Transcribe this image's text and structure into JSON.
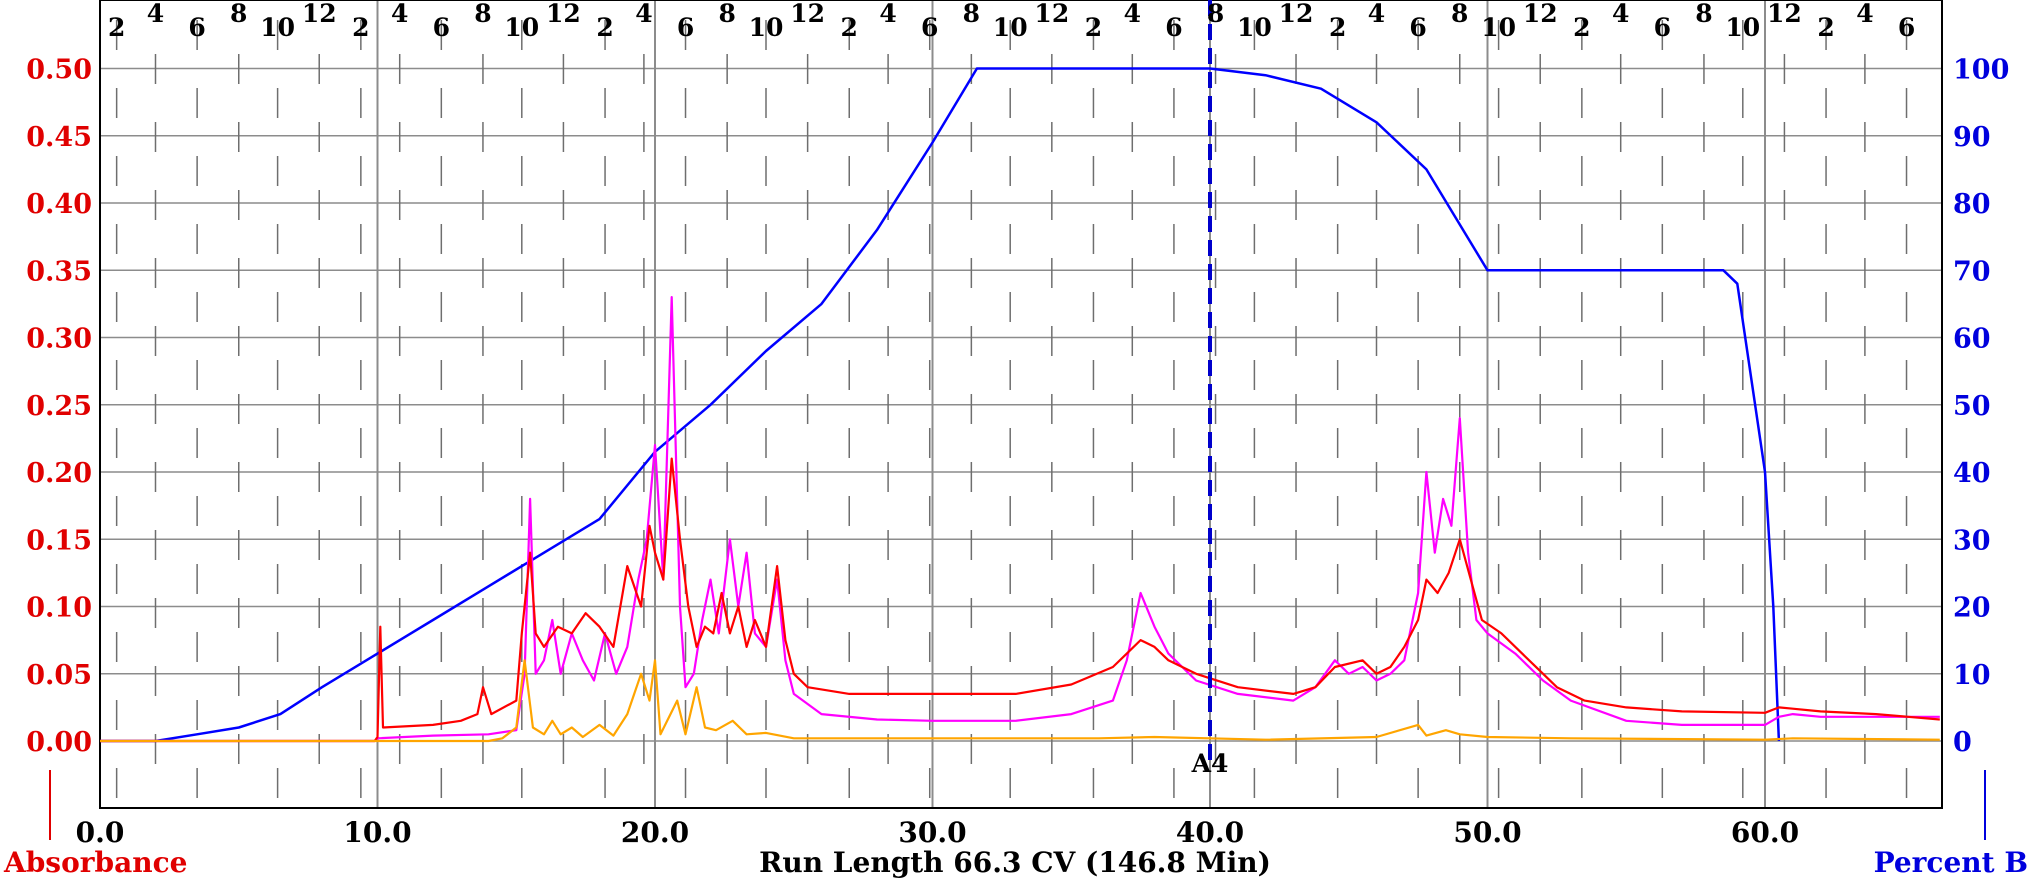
{
  "chart_data": {
    "type": "line",
    "xlabel": "Run Length 66.3 CV (146.8 Min)",
    "left_axis_title": "Absorbance",
    "right_axis_title": "Percent B",
    "xlim": [
      0,
      66.3
    ],
    "ylim_left": [
      -0.05,
      0.52
    ],
    "ylim_right": [
      -10,
      104
    ],
    "x_ticks": [
      "0.0",
      "10.0",
      "20.0",
      "30.0",
      "40.0",
      "50.0",
      "60.0"
    ],
    "x_tick_values": [
      0,
      10,
      20,
      30,
      40,
      50,
      60
    ],
    "y_left_ticks": [
      "0.00",
      "0.05",
      "0.10",
      "0.15",
      "0.20",
      "0.25",
      "0.30",
      "0.35",
      "0.40",
      "0.45",
      "0.50"
    ],
    "y_left_values": [
      0,
      0.05,
      0.1,
      0.15,
      0.2,
      0.25,
      0.3,
      0.35,
      0.4,
      0.45,
      0.5
    ],
    "y_right_ticks": [
      "0",
      "10",
      "20",
      "30",
      "40",
      "50",
      "60",
      "70",
      "80",
      "90",
      "100"
    ],
    "y_right_values": [
      0,
      10,
      20,
      30,
      40,
      50,
      60,
      70,
      80,
      90,
      100
    ],
    "fractions": [
      {
        "label": "2",
        "x": 0.6
      },
      {
        "label": "4",
        "x": 2.0
      },
      {
        "label": "6",
        "x": 3.5
      },
      {
        "label": "8",
        "x": 5.0
      },
      {
        "label": "10",
        "x": 6.4
      },
      {
        "label": "12",
        "x": 7.9
      },
      {
        "label": "2",
        "x": 9.4
      },
      {
        "label": "4",
        "x": 10.8
      },
      {
        "label": "6",
        "x": 12.3
      },
      {
        "label": "8",
        "x": 13.8
      },
      {
        "label": "10",
        "x": 15.2
      },
      {
        "label": "12",
        "x": 16.7
      },
      {
        "label": "2",
        "x": 18.2
      },
      {
        "label": "4",
        "x": 19.6
      },
      {
        "label": "6",
        "x": 21.1
      },
      {
        "label": "8",
        "x": 22.6
      },
      {
        "label": "10",
        "x": 24.0
      },
      {
        "label": "12",
        "x": 25.5
      },
      {
        "label": "2",
        "x": 27.0
      },
      {
        "label": "4",
        "x": 28.4
      },
      {
        "label": "6",
        "x": 29.9
      },
      {
        "label": "8",
        "x": 31.4
      },
      {
        "label": "10",
        "x": 32.8
      },
      {
        "label": "12",
        "x": 34.3
      },
      {
        "label": "2",
        "x": 35.8
      },
      {
        "label": "4",
        "x": 37.2
      },
      {
        "label": "6",
        "x": 38.7
      },
      {
        "label": "8",
        "x": 40.2
      },
      {
        "label": "10",
        "x": 41.6
      },
      {
        "label": "12",
        "x": 43.1
      },
      {
        "label": "2",
        "x": 44.6
      },
      {
        "label": "4",
        "x": 46.0
      },
      {
        "label": "6",
        "x": 47.5
      },
      {
        "label": "8",
        "x": 49.0
      },
      {
        "label": "10",
        "x": 50.4
      },
      {
        "label": "12",
        "x": 51.9
      },
      {
        "label": "2",
        "x": 53.4
      },
      {
        "label": "4",
        "x": 54.8
      },
      {
        "label": "6",
        "x": 56.3
      },
      {
        "label": "8",
        "x": 57.8
      },
      {
        "label": "10",
        "x": 59.2
      },
      {
        "label": "12",
        "x": 60.7
      },
      {
        "label": "2",
        "x": 62.2
      },
      {
        "label": "4",
        "x": 63.6
      },
      {
        "label": "6",
        "x": 65.1
      }
    ],
    "marker": {
      "label": "A4",
      "x": 40.0
    },
    "grid": true,
    "series": [
      {
        "axis": "right",
        "color": "#0000ff",
        "points": [
          [
            0,
            0
          ],
          [
            2,
            0
          ],
          [
            3.5,
            1
          ],
          [
            5,
            2
          ],
          [
            6.5,
            4
          ],
          [
            8,
            8
          ],
          [
            10,
            13
          ],
          [
            12,
            18
          ],
          [
            14,
            23
          ],
          [
            16,
            28
          ],
          [
            18,
            33
          ],
          [
            20,
            43
          ],
          [
            22,
            50
          ],
          [
            24,
            58
          ],
          [
            26,
            65
          ],
          [
            28,
            76
          ],
          [
            30,
            89
          ],
          [
            31.6,
            100
          ],
          [
            39,
            100
          ],
          [
            40,
            100
          ],
          [
            42,
            99
          ],
          [
            44,
            97
          ],
          [
            46,
            92
          ],
          [
            47.8,
            85
          ],
          [
            50,
            70
          ],
          [
            58.5,
            70
          ],
          [
            59,
            68
          ],
          [
            60,
            40
          ],
          [
            60.3,
            20
          ],
          [
            60.5,
            0
          ]
        ]
      },
      {
        "axis": "left",
        "color": "#ff00ff",
        "points": [
          [
            0,
            0
          ],
          [
            9.9,
            0
          ],
          [
            10,
            0.002
          ],
          [
            12,
            0.004
          ],
          [
            14,
            0.005
          ],
          [
            15,
            0.008
          ],
          [
            15.3,
            0.05
          ],
          [
            15.5,
            0.18
          ],
          [
            15.7,
            0.05
          ],
          [
            16,
            0.06
          ],
          [
            16.3,
            0.09
          ],
          [
            16.6,
            0.05
          ],
          [
            17,
            0.08
          ],
          [
            17.4,
            0.06
          ],
          [
            17.8,
            0.045
          ],
          [
            18.2,
            0.08
          ],
          [
            18.6,
            0.05
          ],
          [
            19,
            0.07
          ],
          [
            19.4,
            0.12
          ],
          [
            19.7,
            0.15
          ],
          [
            20,
            0.22
          ],
          [
            20.3,
            0.12
          ],
          [
            20.6,
            0.33
          ],
          [
            20.9,
            0.1
          ],
          [
            21.1,
            0.04
          ],
          [
            21.4,
            0.05
          ],
          [
            21.7,
            0.09
          ],
          [
            22,
            0.12
          ],
          [
            22.3,
            0.08
          ],
          [
            22.7,
            0.15
          ],
          [
            23,
            0.1
          ],
          [
            23.3,
            0.14
          ],
          [
            23.6,
            0.08
          ],
          [
            24,
            0.07
          ],
          [
            24.4,
            0.12
          ],
          [
            24.7,
            0.06
          ],
          [
            25,
            0.035
          ],
          [
            26,
            0.02
          ],
          [
            28,
            0.016
          ],
          [
            30,
            0.015
          ],
          [
            33,
            0.015
          ],
          [
            35,
            0.02
          ],
          [
            36.5,
            0.03
          ],
          [
            37,
            0.06
          ],
          [
            37.5,
            0.11
          ],
          [
            38,
            0.085
          ],
          [
            38.5,
            0.065
          ],
          [
            39.5,
            0.045
          ],
          [
            41,
            0.035
          ],
          [
            43,
            0.03
          ],
          [
            43.8,
            0.04
          ],
          [
            44.5,
            0.06
          ],
          [
            45,
            0.05
          ],
          [
            45.5,
            0.055
          ],
          [
            46,
            0.045
          ],
          [
            46.5,
            0.05
          ],
          [
            47,
            0.06
          ],
          [
            47.5,
            0.11
          ],
          [
            47.8,
            0.2
          ],
          [
            48.1,
            0.14
          ],
          [
            48.4,
            0.18
          ],
          [
            48.7,
            0.16
          ],
          [
            49,
            0.24
          ],
          [
            49.3,
            0.14
          ],
          [
            49.6,
            0.09
          ],
          [
            50,
            0.08
          ],
          [
            51,
            0.065
          ],
          [
            52,
            0.045
          ],
          [
            53,
            0.03
          ],
          [
            55,
            0.015
          ],
          [
            57,
            0.012
          ],
          [
            60,
            0.012
          ],
          [
            60.5,
            0.018
          ],
          [
            61,
            0.02
          ],
          [
            62,
            0.018
          ],
          [
            66.3,
            0.018
          ]
        ]
      },
      {
        "axis": "left",
        "color": "#ff0000",
        "points": [
          [
            0,
            0
          ],
          [
            9.9,
            0
          ],
          [
            10,
            0.003
          ],
          [
            10.1,
            0.085
          ],
          [
            10.2,
            0.01
          ],
          [
            12,
            0.012
          ],
          [
            13,
            0.015
          ],
          [
            13.6,
            0.02
          ],
          [
            13.8,
            0.04
          ],
          [
            14.1,
            0.02
          ],
          [
            15,
            0.03
          ],
          [
            15.2,
            0.08
          ],
          [
            15.5,
            0.14
          ],
          [
            15.7,
            0.08
          ],
          [
            16,
            0.07
          ],
          [
            16.5,
            0.085
          ],
          [
            17,
            0.08
          ],
          [
            17.5,
            0.095
          ],
          [
            18,
            0.085
          ],
          [
            18.5,
            0.07
          ],
          [
            19,
            0.13
          ],
          [
            19.5,
            0.1
          ],
          [
            19.8,
            0.16
          ],
          [
            20,
            0.14
          ],
          [
            20.3,
            0.12
          ],
          [
            20.6,
            0.21
          ],
          [
            20.9,
            0.15
          ],
          [
            21.2,
            0.1
          ],
          [
            21.5,
            0.07
          ],
          [
            21.8,
            0.085
          ],
          [
            22.1,
            0.08
          ],
          [
            22.4,
            0.11
          ],
          [
            22.7,
            0.08
          ],
          [
            23,
            0.1
          ],
          [
            23.3,
            0.07
          ],
          [
            23.6,
            0.09
          ],
          [
            24,
            0.07
          ],
          [
            24.4,
            0.13
          ],
          [
            24.7,
            0.075
          ],
          [
            25,
            0.05
          ],
          [
            25.5,
            0.04
          ],
          [
            27,
            0.035
          ],
          [
            30,
            0.035
          ],
          [
            33,
            0.035
          ],
          [
            35,
            0.042
          ],
          [
            36.5,
            0.055
          ],
          [
            37,
            0.065
          ],
          [
            37.5,
            0.075
          ],
          [
            38,
            0.07
          ],
          [
            38.5,
            0.06
          ],
          [
            39.5,
            0.05
          ],
          [
            41,
            0.04
          ],
          [
            43,
            0.035
          ],
          [
            43.8,
            0.04
          ],
          [
            44.5,
            0.055
          ],
          [
            45.5,
            0.06
          ],
          [
            46,
            0.05
          ],
          [
            46.5,
            0.055
          ],
          [
            47,
            0.07
          ],
          [
            47.5,
            0.09
          ],
          [
            47.8,
            0.12
          ],
          [
            48.2,
            0.11
          ],
          [
            48.6,
            0.125
          ],
          [
            49,
            0.15
          ],
          [
            49.4,
            0.12
          ],
          [
            49.8,
            0.09
          ],
          [
            50.5,
            0.08
          ],
          [
            51.5,
            0.06
          ],
          [
            52.5,
            0.04
          ],
          [
            53.5,
            0.03
          ],
          [
            55,
            0.025
          ],
          [
            57,
            0.022
          ],
          [
            60,
            0.021
          ],
          [
            60.5,
            0.025
          ],
          [
            61,
            0.024
          ],
          [
            62,
            0.022
          ],
          [
            64,
            0.02
          ],
          [
            66.3,
            0.016
          ]
        ]
      },
      {
        "axis": "left",
        "color": "#ffa500",
        "points": [
          [
            0,
            0
          ],
          [
            14,
            0
          ],
          [
            14.5,
            0.002
          ],
          [
            15,
            0.01
          ],
          [
            15.3,
            0.06
          ],
          [
            15.6,
            0.01
          ],
          [
            16,
            0.005
          ],
          [
            16.3,
            0.015
          ],
          [
            16.6,
            0.005
          ],
          [
            17,
            0.01
          ],
          [
            17.4,
            0.003
          ],
          [
            18,
            0.012
          ],
          [
            18.5,
            0.004
          ],
          [
            19,
            0.02
          ],
          [
            19.5,
            0.05
          ],
          [
            19.8,
            0.03
          ],
          [
            20,
            0.06
          ],
          [
            20.2,
            0.005
          ],
          [
            20.8,
            0.03
          ],
          [
            21.1,
            0.005
          ],
          [
            21.5,
            0.04
          ],
          [
            21.8,
            0.01
          ],
          [
            22.2,
            0.008
          ],
          [
            22.8,
            0.015
          ],
          [
            23.3,
            0.005
          ],
          [
            24,
            0.006
          ],
          [
            25,
            0.002
          ],
          [
            28,
            0.002
          ],
          [
            36,
            0.002
          ],
          [
            38,
            0.003
          ],
          [
            42,
            0.001
          ],
          [
            46,
            0.003
          ],
          [
            47.5,
            0.012
          ],
          [
            47.8,
            0.004
          ],
          [
            48.5,
            0.008
          ],
          [
            49,
            0.005
          ],
          [
            50,
            0.003
          ],
          [
            53,
            0.002
          ],
          [
            60,
            0.001
          ],
          [
            61,
            0.002
          ],
          [
            66.3,
            0.001
          ]
        ]
      }
    ]
  }
}
